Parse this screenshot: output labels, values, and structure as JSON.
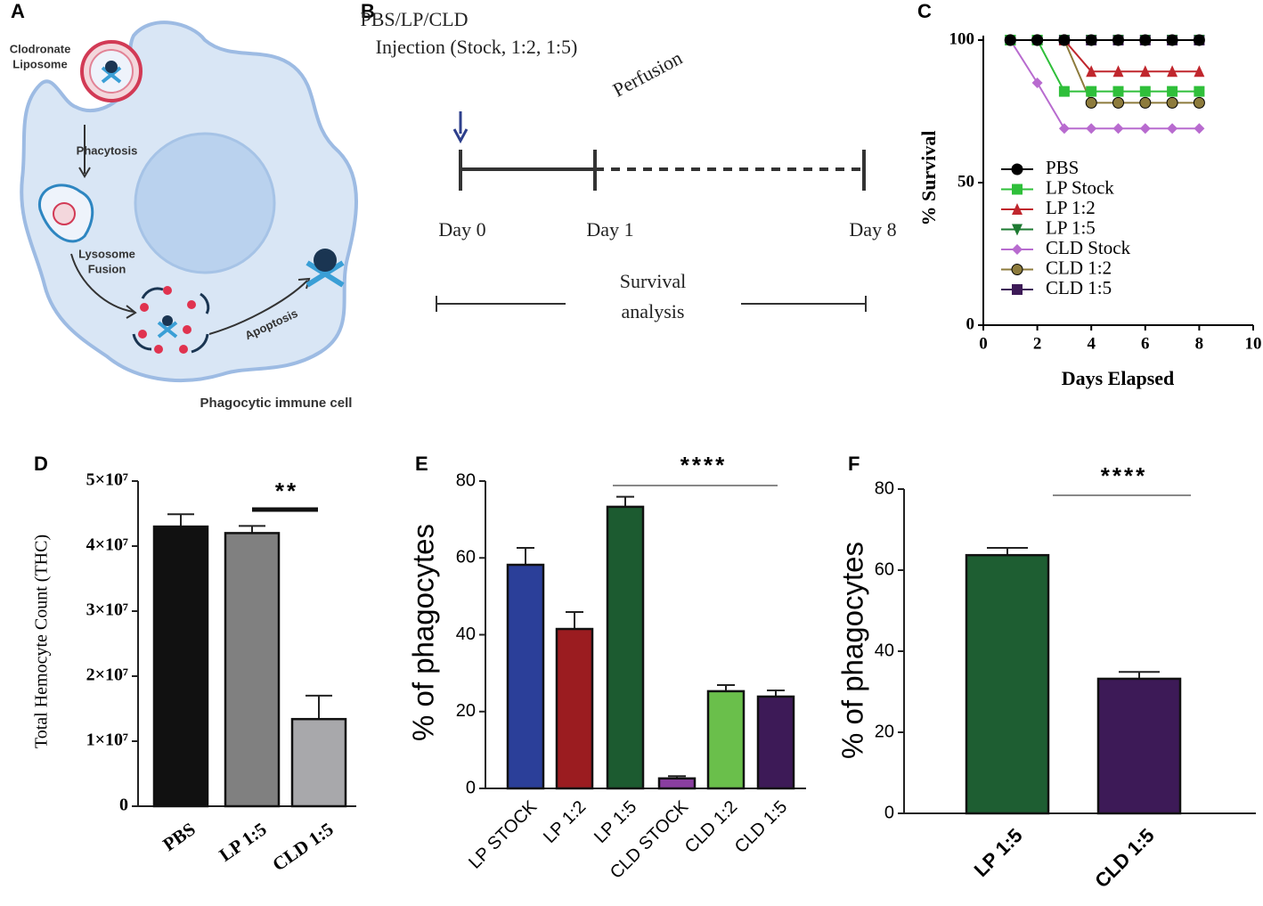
{
  "panel_labels": [
    "A",
    "B",
    "C",
    "D",
    "E",
    "F"
  ],
  "diagram_a": {
    "liposome_label": [
      "Clodronate",
      "Liposome"
    ],
    "step_1": "Phacytosis",
    "step_2": [
      "Lysosome",
      "Fusion"
    ],
    "step_3": "Apoptosis",
    "cell_label": "Phagocytic immune cell"
  },
  "timeline_b": {
    "injection": [
      "PBS/LP/CLD",
      "Injection (Stock, 1:2, 1:5)"
    ],
    "perfusion": "Perfusion",
    "days": [
      "Day 0",
      "Day 1",
      "Day 8"
    ],
    "survival": [
      "Survival",
      "analysis"
    ]
  },
  "chart_data": [
    {
      "type": "line",
      "y_label": "% Survival",
      "x_label": "Days  Elapsed",
      "xlim": [
        0,
        10
      ],
      "xticks": [
        0,
        2,
        4,
        6,
        8,
        10
      ],
      "ylim": [
        0,
        100
      ],
      "yticks": [
        0,
        50,
        100
      ],
      "x": [
        1,
        2,
        3,
        4,
        5,
        6,
        7,
        8
      ],
      "series": [
        {
          "name": "PBS",
          "color": "#000000",
          "marker": "circle",
          "values": [
            100,
            100,
            100,
            100,
            100,
            100,
            100,
            100
          ]
        },
        {
          "name": "LP Stock",
          "color": "#2fbf3a",
          "marker": "square",
          "values": [
            100,
            100,
            82,
            82,
            82,
            82,
            82,
            82
          ]
        },
        {
          "name": "LP 1:2",
          "color": "#c0262d",
          "marker": "triangle",
          "values": [
            100,
            100,
            100,
            89,
            89,
            89,
            89,
            89
          ]
        },
        {
          "name": "LP 1:5",
          "color": "#1e7a32",
          "marker": "triangle-down",
          "values": [
            100,
            100,
            100,
            100,
            100,
            100,
            100,
            100
          ]
        },
        {
          "name": "CLD Stock",
          "color": "#b86bcf",
          "marker": "diamond",
          "values": [
            100,
            85,
            69,
            69,
            69,
            69,
            69,
            69
          ]
        },
        {
          "name": "CLD 1:2",
          "color": "#8d7b3c",
          "marker": "circle",
          "values": [
            100,
            100,
            100,
            78,
            78,
            78,
            78,
            78
          ]
        },
        {
          "name": "CLD 1:5",
          "color": "#3d1a57",
          "marker": "square",
          "values": [
            100,
            100,
            100,
            100,
            100,
            100,
            100,
            100
          ]
        }
      ]
    },
    {
      "type": "bar",
      "y_label": "Total Hemocyte Count (THC)",
      "categories": [
        "PBS",
        "LP 1:5",
        "CLD 1:5"
      ],
      "values": [
        43000000,
        42000000,
        13400000
      ],
      "errors": [
        1900000,
        1100000,
        3600000
      ],
      "colors": [
        "#111111",
        "#808080",
        "#a8a8ab"
      ],
      "ylim": [
        0,
        50000000
      ],
      "yticks": [
        0,
        {
          "value": 10000000,
          "label": "1×10⁷"
        },
        {
          "value": 20000000,
          "label": "2×10⁷"
        },
        {
          "value": 30000000,
          "label": "3×10⁷"
        },
        {
          "value": 40000000,
          "label": "4×10⁷"
        },
        {
          "value": 50000000,
          "label": "5×10⁷"
        }
      ],
      "annotation": "**"
    },
    {
      "type": "bar",
      "y_label": "% of phagocytes",
      "categories": [
        "LP STOCK",
        "LP 1:2",
        "LP 1:5",
        "CLD STOCK",
        "CLD 1:2",
        "CLD 1:5"
      ],
      "values": [
        58.2,
        41.5,
        73.3,
        2.6,
        25.3,
        23.9
      ],
      "errors": [
        4.4,
        4.4,
        2.6,
        0.6,
        1.6,
        1.6
      ],
      "colors": [
        "#2b3f99",
        "#9b1c20",
        "#1c5b30",
        "#8a3ea0",
        "#6abf4b",
        "#3d1a57"
      ],
      "ylim": [
        0,
        80
      ],
      "yticks": [
        0,
        20,
        40,
        60,
        80
      ],
      "annotation": "****"
    },
    {
      "type": "bar",
      "y_label": "% of phagocytes",
      "categories": [
        "LP 1:5",
        "CLD 1:5"
      ],
      "values": [
        63.7,
        33.2
      ],
      "errors": [
        1.8,
        1.7
      ],
      "colors": [
        "#1e5e32",
        "#3d1a57"
      ],
      "ylim": [
        0,
        80
      ],
      "yticks": [
        0,
        20,
        40,
        60,
        80
      ],
      "annotation": "****"
    }
  ]
}
